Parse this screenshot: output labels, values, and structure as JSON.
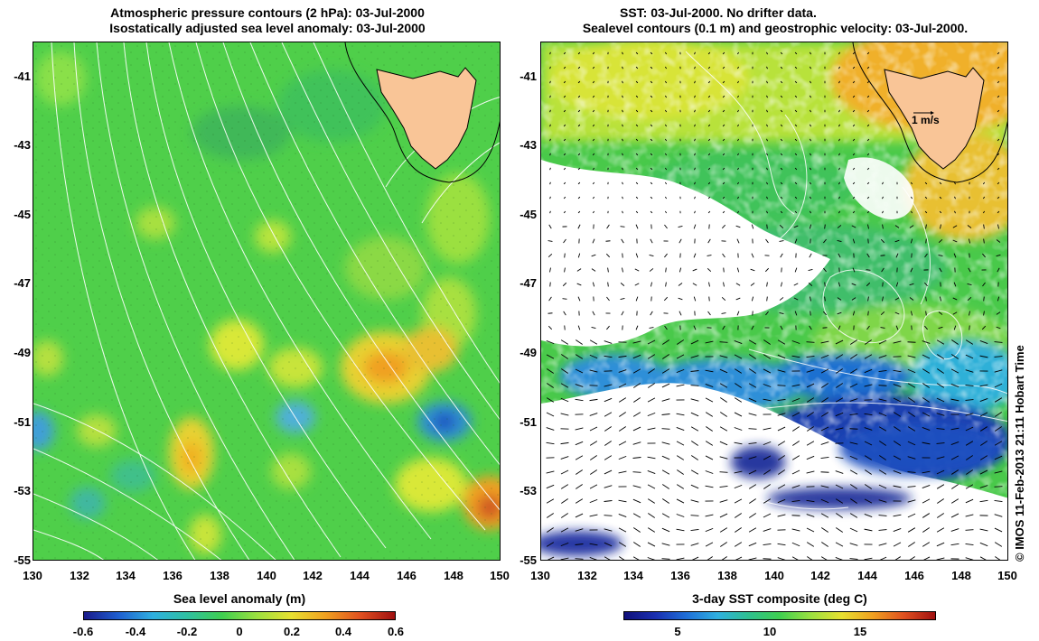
{
  "left_map": {
    "title_line1": "Atmospheric pressure contours (2 hPa): 03-Jul-2000",
    "title_line2": "Isostatically adjusted sea level anomaly: 03-Jul-2000",
    "y_ticks": [
      "-41",
      "-43",
      "-45",
      "-47",
      "-49",
      "-51",
      "-53",
      "-55"
    ],
    "x_ticks": [
      "130",
      "132",
      "134",
      "136",
      "138",
      "140",
      "142",
      "144",
      "146",
      "148",
      "150"
    ],
    "colorbar_title": "Sea level anomaly (m)",
    "colorbar_ticks": [
      "-0.6",
      "-0.4",
      "-0.2",
      "0",
      "0.2",
      "0.4",
      "0.6"
    ]
  },
  "right_map": {
    "title_line1": "SST: 03-Jul-2000. No drifter data.",
    "title_line2": "Sealevel contours (0.1 m) and geostrophic velocity: 03-Jul-2000.",
    "y_ticks": [
      "-41",
      "-43",
      "-45",
      "-47",
      "-49",
      "-51",
      "-53",
      "-55"
    ],
    "x_ticks": [
      "130",
      "132",
      "134",
      "136",
      "138",
      "140",
      "142",
      "144",
      "146",
      "148",
      "150"
    ],
    "velocity_scale_label": "1 m/s",
    "colorbar_title": "3-day SST composite (deg C)",
    "colorbar_ticks": [
      "5",
      "10",
      "15"
    ]
  },
  "credit": "© IMOS 11-Feb-2013 21:11 Hobart Time",
  "colors": {
    "land": "#f9c597",
    "ocean_green": "#4fd24a",
    "cloud": "#ffffff"
  }
}
